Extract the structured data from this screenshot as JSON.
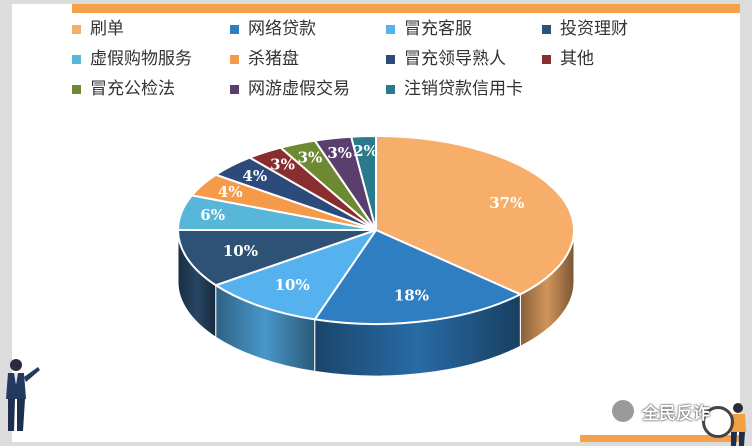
{
  "chart_data": {
    "type": "pie",
    "title": "",
    "legend_position": "top",
    "categories": [
      "刷单",
      "网络贷款",
      "冒充客服",
      "投资理财",
      "虚假购物服务",
      "杀猪盘",
      "冒充领导熟人",
      "其他",
      "冒充公检法",
      "网游虚假交易",
      "注销贷款信用卡"
    ],
    "values": [
      37,
      18,
      10,
      10,
      6,
      4,
      4,
      3,
      3,
      3,
      2
    ],
    "labels": [
      "37%",
      "18%",
      "10%",
      "10%",
      "6%",
      "4%",
      "4%",
      "3%",
      "3%",
      "3%",
      "2%"
    ],
    "colors": [
      "#f6ae6a",
      "#2f7ec2",
      "#55b2ee",
      "#2e5276",
      "#58b6d8",
      "#f49a48",
      "#2c4a7a",
      "#8a2d2f",
      "#6d8a32",
      "#5a3f6e",
      "#2a7a8c"
    ]
  },
  "watermark": {
    "text": "全民反诈"
  }
}
